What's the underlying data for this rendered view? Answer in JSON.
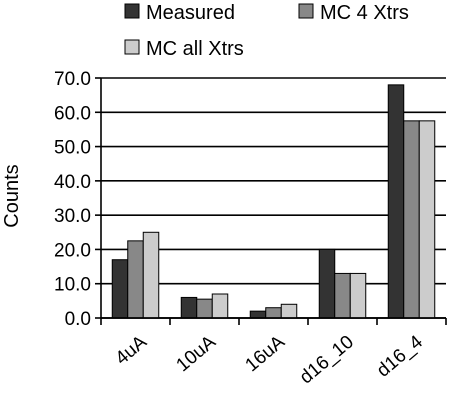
{
  "chart_data": {
    "type": "bar",
    "title": "",
    "xlabel": "",
    "ylabel": "Counts",
    "ylim": [
      0,
      70
    ],
    "yticks": [
      "0.0",
      "10.0",
      "20.0",
      "30.0",
      "40.0",
      "50.0",
      "60.0",
      "70.0"
    ],
    "categories": [
      "4uA",
      "10uA",
      "16uA",
      "d16_10",
      "d16_4"
    ],
    "series": [
      {
        "name": "Measured",
        "values": [
          17,
          6,
          2,
          20,
          68
        ]
      },
      {
        "name": "MC 4 Xtrs",
        "values": [
          22.5,
          5.5,
          3,
          13,
          57.5
        ]
      },
      {
        "name": "MC all Xtrs",
        "values": [
          25,
          7,
          4,
          13,
          57.5
        ]
      }
    ],
    "grid": true,
    "legend_position": "top",
    "colors": [
      "#333333",
      "#888888",
      "#cccccc"
    ]
  }
}
